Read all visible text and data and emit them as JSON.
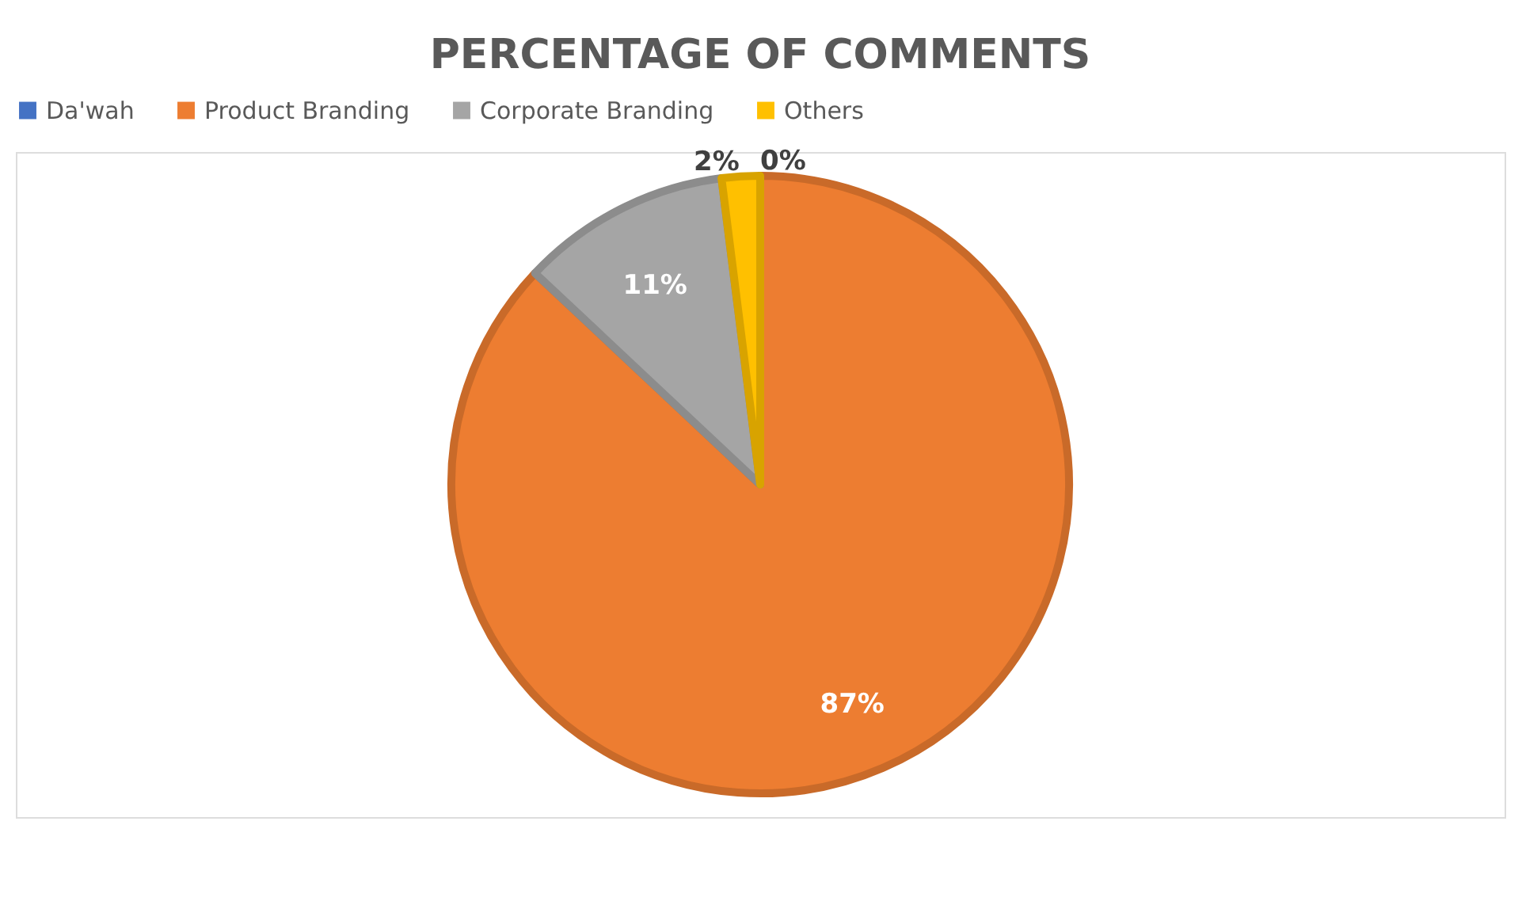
{
  "chart_data": {
    "type": "pie",
    "title": "PERCENTAGE OF COMMENTS",
    "categories": [
      "Da'wah",
      "Product Branding",
      "Corporate Branding",
      "Others"
    ],
    "values": [
      0,
      87,
      11,
      2
    ],
    "colors": [
      "#4472c4",
      "#ed7d31",
      "#a5a5a5",
      "#ffc000"
    ],
    "value_labels": [
      "0%",
      "87%",
      "11%",
      "2%"
    ],
    "legend": "top"
  }
}
